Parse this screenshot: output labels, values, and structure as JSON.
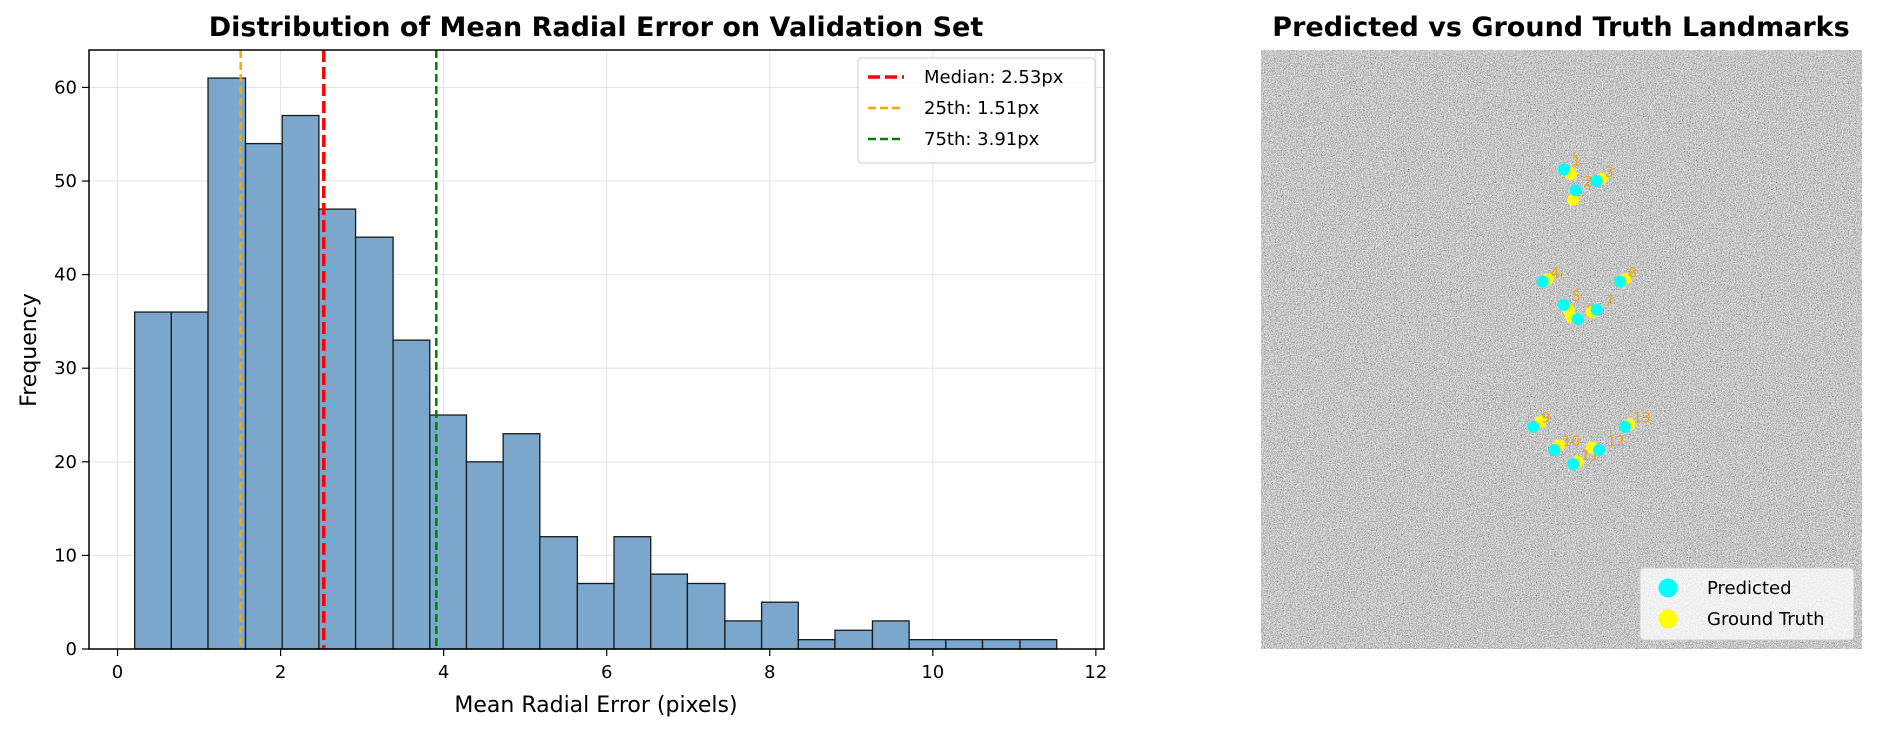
{
  "chart_data": [
    {
      "type": "bar",
      "title": "Distribution of Mean Radial Error on Validation Set",
      "xlabel": "Mean Radial Error (pixels)",
      "ylabel": "Frequency",
      "xlim": [
        -0.35,
        12.1
      ],
      "ylim": [
        0,
        64
      ],
      "xticks": [
        0,
        2,
        4,
        6,
        8,
        10,
        12
      ],
      "yticks": [
        0,
        10,
        20,
        30,
        40,
        50,
        60
      ],
      "grid": true,
      "bar_color": "#7ba7cc",
      "bar_edge_color": "#1a1a1a",
      "bins": [
        {
          "x0": 0.21,
          "x1": 0.66,
          "count": 36
        },
        {
          "x0": 0.66,
          "x1": 1.11,
          "count": 36
        },
        {
          "x0": 1.11,
          "x1": 1.57,
          "count": 61
        },
        {
          "x0": 1.57,
          "x1": 2.02,
          "count": 54
        },
        {
          "x0": 2.02,
          "x1": 2.47,
          "count": 57
        },
        {
          "x0": 2.47,
          "x1": 2.92,
          "count": 47
        },
        {
          "x0": 2.92,
          "x1": 3.38,
          "count": 44
        },
        {
          "x0": 3.38,
          "x1": 3.83,
          "count": 33
        },
        {
          "x0": 3.83,
          "x1": 4.28,
          "count": 25
        },
        {
          "x0": 4.28,
          "x1": 4.73,
          "count": 20
        },
        {
          "x0": 4.73,
          "x1": 5.18,
          "count": 23
        },
        {
          "x0": 5.18,
          "x1": 5.64,
          "count": 12
        },
        {
          "x0": 5.64,
          "x1": 6.09,
          "count": 7
        },
        {
          "x0": 6.09,
          "x1": 6.54,
          "count": 12
        },
        {
          "x0": 6.54,
          "x1": 6.99,
          "count": 8
        },
        {
          "x0": 6.99,
          "x1": 7.45,
          "count": 7
        },
        {
          "x0": 7.45,
          "x1": 7.9,
          "count": 3
        },
        {
          "x0": 7.9,
          "x1": 8.35,
          "count": 5
        },
        {
          "x0": 8.35,
          "x1": 8.8,
          "count": 1
        },
        {
          "x0": 8.8,
          "x1": 9.26,
          "count": 2
        },
        {
          "x0": 9.26,
          "x1": 9.71,
          "count": 3
        },
        {
          "x0": 9.71,
          "x1": 10.16,
          "count": 1
        },
        {
          "x0": 10.16,
          "x1": 10.61,
          "count": 1
        },
        {
          "x0": 10.61,
          "x1": 11.07,
          "count": 1
        },
        {
          "x0": 11.07,
          "x1": 11.52,
          "count": 1
        }
      ],
      "reference_lines": [
        {
          "label": "Median: 2.53px",
          "x": 2.53,
          "color": "#ff0000",
          "style": "dashed",
          "width": 3.5
        },
        {
          "label": "25th: 1.51px",
          "x": 1.51,
          "color": "#ffa500",
          "style": "dashed",
          "width": 2.5
        },
        {
          "label": "75th: 3.91px",
          "x": 3.91,
          "color": "#008000",
          "style": "dashed",
          "width": 2.5
        }
      ],
      "legend_position": "top-right"
    },
    {
      "type": "scatter",
      "title": "Predicted vs Ground Truth Landmarks",
      "image_background": "grayscale noise",
      "xlim": [
        0,
        128
      ],
      "ylim": [
        128,
        0
      ],
      "series": [
        {
          "name": "Predicted",
          "color": "#00ffff"
        },
        {
          "name": "Ground Truth",
          "color": "#ffff00"
        }
      ],
      "legend_position": "bottom-right",
      "landmarks": [
        {
          "label": "1",
          "pred": [
            64.5,
            25.5
          ],
          "gt": [
            66.0,
            26.5
          ]
        },
        {
          "label": "2",
          "pred": [
            67.0,
            30.0
          ],
          "gt": [
            66.5,
            32.0
          ]
        },
        {
          "label": "3",
          "pred": [
            71.5,
            28.0
          ],
          "gt": [
            72.5,
            27.5
          ]
        },
        {
          "label": "4",
          "pred": [
            60.0,
            49.5
          ],
          "gt": [
            61.0,
            49.0
          ]
        },
        {
          "label": "5",
          "pred": [
            64.5,
            54.5
          ],
          "gt": [
            65.5,
            55.5
          ]
        },
        {
          "label": "6",
          "pred": [
            67.5,
            57.5
          ],
          "gt": [
            66.0,
            57.0
          ]
        },
        {
          "label": "7",
          "pred": [
            71.5,
            55.5
          ],
          "gt": [
            70.5,
            56.0
          ]
        },
        {
          "label": "8",
          "pred": [
            76.5,
            49.5
          ],
          "gt": [
            77.5,
            49.0
          ]
        },
        {
          "label": "9",
          "pred": [
            58.0,
            80.5
          ],
          "gt": [
            59.5,
            79.5
          ]
        },
        {
          "label": "10",
          "pred": [
            62.5,
            85.5
          ],
          "gt": [
            63.5,
            84.5
          ]
        },
        {
          "label": "11",
          "pred": [
            66.5,
            88.5
          ],
          "gt": [
            67.5,
            88.0
          ]
        },
        {
          "label": "12",
          "pred": [
            72.0,
            85.5
          ],
          "gt": [
            70.5,
            85.0
          ]
        },
        {
          "label": "13",
          "pred": [
            77.5,
            80.5
          ],
          "gt": [
            78.5,
            80.0
          ]
        }
      ]
    }
  ]
}
